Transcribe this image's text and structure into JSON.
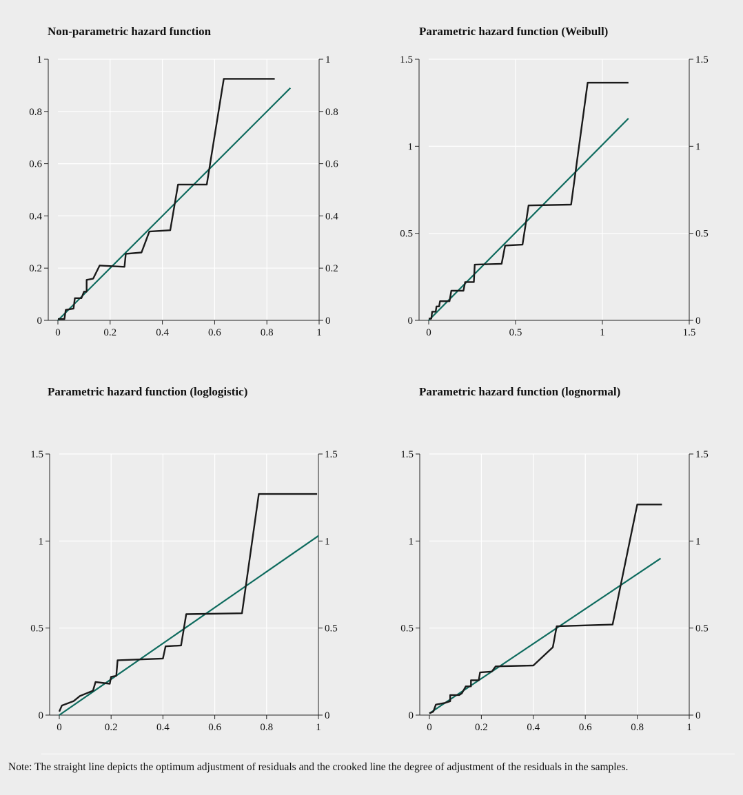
{
  "note": "Note: The straight line depicts the optimum adjustment of residuals and the crooked line the degree of adjustment of the residuals in the samples.",
  "colors": {
    "background": "#ededed",
    "grid": "#ffffff",
    "fit_line": "#0e6b5e",
    "empirical_line": "#1a1a1a"
  },
  "chart_data": [
    {
      "type": "line",
      "title": "Non-parametric hazard function",
      "xlim": [
        0,
        1
      ],
      "ylim": [
        0,
        1
      ],
      "x_ticks": [
        0,
        0.2,
        0.4,
        0.6,
        0.8,
        1
      ],
      "y_ticks": [
        0,
        0.2,
        0.4,
        0.6,
        0.8,
        1
      ],
      "x_tick_labels": [
        "0",
        "0.2",
        "0.4",
        "0.6",
        "0.8",
        "1"
      ],
      "y_tick_labels": [
        "0",
        "0.2",
        "0.4",
        "0.6",
        "0.8",
        "1"
      ],
      "grid": true,
      "series": [
        {
          "values": [
            [
              0,
              0
            ],
            [
              0.89,
              0.89
            ]
          ]
        },
        {
          "values": [
            [
              0,
              0.005
            ],
            [
              0.025,
              0.005
            ],
            [
              0.03,
              0.04
            ],
            [
              0.06,
              0.045
            ],
            [
              0.065,
              0.085
            ],
            [
              0.09,
              0.085
            ],
            [
              0.1,
              0.11
            ],
            [
              0.11,
              0.11
            ],
            [
              0.11,
              0.155
            ],
            [
              0.135,
              0.16
            ],
            [
              0.16,
              0.21
            ],
            [
              0.255,
              0.205
            ],
            [
              0.26,
              0.255
            ],
            [
              0.32,
              0.26
            ],
            [
              0.35,
              0.34
            ],
            [
              0.43,
              0.345
            ],
            [
              0.46,
              0.52
            ],
            [
              0.57,
              0.52
            ],
            [
              0.635,
              0.925
            ],
            [
              0.83,
              0.925
            ]
          ]
        }
      ]
    },
    {
      "type": "line",
      "title": "Parametric hazard function (Weibull)",
      "xlim": [
        0,
        1.5
      ],
      "ylim": [
        0,
        1.5
      ],
      "x_ticks": [
        0,
        0.5,
        1,
        1.5
      ],
      "y_ticks": [
        0,
        0.5,
        1,
        1.5
      ],
      "x_tick_labels": [
        "0",
        "0.5",
        "1",
        "1.5"
      ],
      "y_tick_labels": [
        "0",
        "0.5",
        "1",
        "1.5"
      ],
      "grid": true,
      "series": [
        {
          "values": [
            [
              0,
              0
            ],
            [
              1.15,
              1.16
            ]
          ]
        },
        {
          "values": [
            [
              0,
              0.01
            ],
            [
              0.015,
              0.01
            ],
            [
              0.02,
              0.05
            ],
            [
              0.04,
              0.05
            ],
            [
              0.045,
              0.08
            ],
            [
              0.06,
              0.08
            ],
            [
              0.065,
              0.11
            ],
            [
              0.09,
              0.11
            ],
            [
              0.12,
              0.11
            ],
            [
              0.13,
              0.17
            ],
            [
              0.175,
              0.17
            ],
            [
              0.2,
              0.17
            ],
            [
              0.21,
              0.22
            ],
            [
              0.26,
              0.22
            ],
            [
              0.265,
              0.32
            ],
            [
              0.42,
              0.325
            ],
            [
              0.44,
              0.43
            ],
            [
              0.54,
              0.435
            ],
            [
              0.575,
              0.66
            ],
            [
              0.82,
              0.665
            ],
            [
              0.915,
              1.365
            ],
            [
              1.15,
              1.365
            ]
          ]
        }
      ]
    },
    {
      "type": "line",
      "title": "Parametric hazard function (loglogistic)",
      "xlim": [
        0,
        1
      ],
      "ylim": [
        0,
        1.5
      ],
      "x_ticks": [
        0,
        0.2,
        0.4,
        0.6,
        0.8,
        1
      ],
      "y_ticks": [
        0,
        0.5,
        1,
        1.5
      ],
      "x_tick_labels": [
        "0",
        "0.2",
        "0.4",
        "0.6",
        "0.8",
        "1"
      ],
      "y_tick_labels": [
        "0",
        "0.5",
        "1",
        "1.5"
      ],
      "grid": true,
      "series": [
        {
          "values": [
            [
              0,
              0
            ],
            [
              1,
              1.03
            ]
          ]
        },
        {
          "values": [
            [
              0,
              0.02
            ],
            [
              0.01,
              0.055
            ],
            [
              0.055,
              0.08
            ],
            [
              0.08,
              0.11
            ],
            [
              0.13,
              0.14
            ],
            [
              0.14,
              0.19
            ],
            [
              0.195,
              0.18
            ],
            [
              0.2,
              0.22
            ],
            [
              0.22,
              0.225
            ],
            [
              0.225,
              0.315
            ],
            [
              0.4,
              0.325
            ],
            [
              0.41,
              0.395
            ],
            [
              0.47,
              0.4
            ],
            [
              0.49,
              0.58
            ],
            [
              0.705,
              0.585
            ],
            [
              0.77,
              1.27
            ],
            [
              0.995,
              1.27
            ]
          ]
        }
      ]
    },
    {
      "type": "line",
      "title": "Parametric hazard function (lognormal)",
      "xlim": [
        0,
        1
      ],
      "ylim": [
        0,
        1.5
      ],
      "x_ticks": [
        0,
        0.2,
        0.4,
        0.6,
        0.8,
        1
      ],
      "y_ticks": [
        0,
        0.5,
        1,
        1.5
      ],
      "x_tick_labels": [
        "0",
        "0.2",
        "0.4",
        "0.6",
        "0.8",
        "1"
      ],
      "y_tick_labels": [
        "0",
        "0.5",
        "1",
        "1.5"
      ],
      "grid": true,
      "series": [
        {
          "values": [
            [
              0,
              0.01
            ],
            [
              0.89,
              0.9
            ]
          ]
        },
        {
          "values": [
            [
              0,
              0.01
            ],
            [
              0.015,
              0.02
            ],
            [
              0.025,
              0.06
            ],
            [
              0.06,
              0.07
            ],
            [
              0.08,
              0.08
            ],
            [
              0.08,
              0.115
            ],
            [
              0.115,
              0.115
            ],
            [
              0.125,
              0.125
            ],
            [
              0.14,
              0.165
            ],
            [
              0.16,
              0.165
            ],
            [
              0.16,
              0.2
            ],
            [
              0.19,
              0.2
            ],
            [
              0.195,
              0.245
            ],
            [
              0.24,
              0.25
            ],
            [
              0.255,
              0.28
            ],
            [
              0.4,
              0.285
            ],
            [
              0.475,
              0.39
            ],
            [
              0.49,
              0.51
            ],
            [
              0.705,
              0.52
            ],
            [
              0.8,
              1.21
            ],
            [
              0.895,
              1.21
            ]
          ]
        }
      ]
    }
  ]
}
